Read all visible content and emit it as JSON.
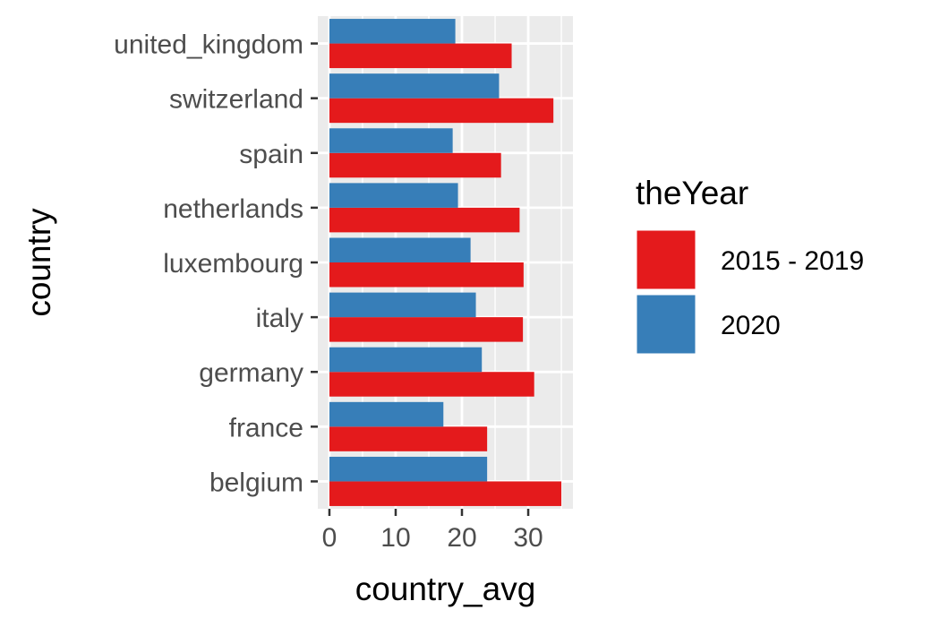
{
  "chart_data": {
    "type": "bar",
    "orientation": "horizontal",
    "xlabel": "country_avg",
    "ylabel": "country",
    "categories": [
      "belgium",
      "france",
      "germany",
      "italy",
      "luxembourg",
      "netherlands",
      "spain",
      "switzerland",
      "united_kingdom"
    ],
    "series": [
      {
        "name": "2015 - 2019",
        "color": "#e41a1c",
        "values": [
          35.0,
          23.8,
          30.9,
          29.2,
          29.3,
          28.7,
          25.9,
          33.8,
          27.5
        ]
      },
      {
        "name": "2020",
        "color": "#377eb8",
        "values": [
          23.8,
          17.2,
          23.0,
          22.1,
          21.3,
          19.4,
          18.6,
          25.6,
          19.0
        ]
      }
    ],
    "xticks": [
      0,
      10,
      20,
      30
    ],
    "xlim": [
      -1.75,
      36.75
    ],
    "legend": {
      "title": "theYear",
      "position": "right"
    },
    "grid": true,
    "panel_background": "#ebebeb",
    "grid_color": "#ffffff"
  }
}
